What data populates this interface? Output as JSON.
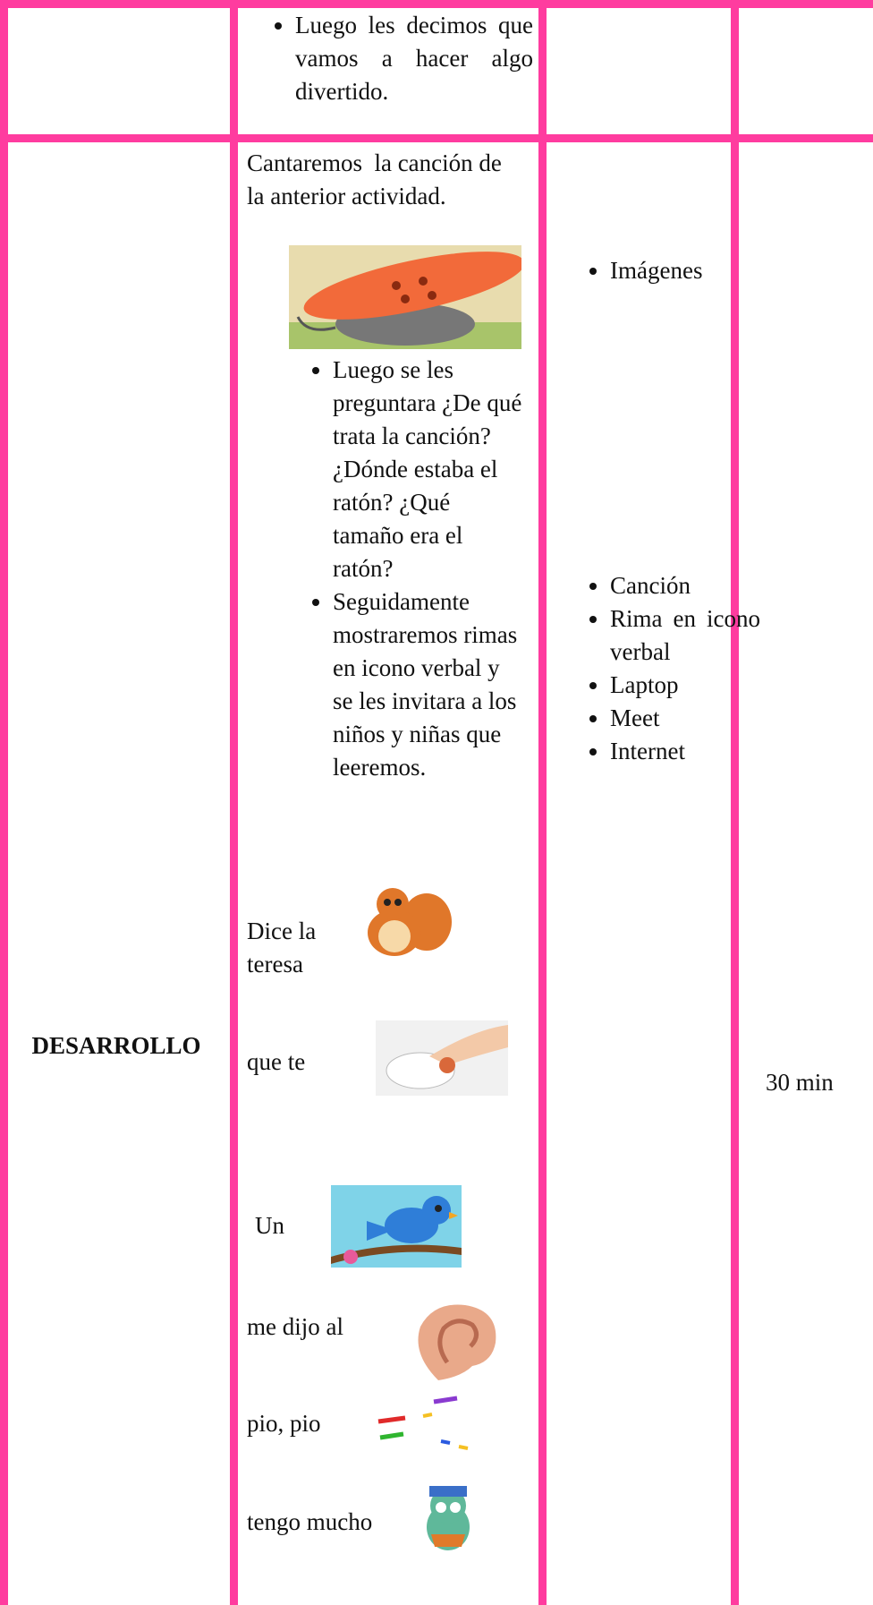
{
  "table": {
    "rows": [
      {
        "activity": {
          "bullets": [
            "Luego les decimos que vamos a hacer algo divertido."
          ]
        }
      },
      {
        "stage": "DESARROLLO",
        "activity": {
          "intro": "Cantaremos  la canción de la anterior actividad.",
          "bullets": [
            "Luego se les preguntara ¿De qué  trata la canción? ¿Dónde estaba el ratón? ¿Qué tamaño era el ratón?",
            "Seguidamente mostraremos rimas en icono verbal y se les invitara a los niños y niñas que leeremos."
          ],
          "rhyme_lines": [
            "Dice la teresa",
            "que te",
            "Un",
            "me dijo al",
            "pio, pio",
            "tengo mucho"
          ]
        },
        "resources": [
          [
            "Imágenes"
          ],
          [
            "Canción",
            "Rima en icono verbal",
            "Laptop",
            "Meet",
            "Internet"
          ]
        ],
        "time": "30 min"
      }
    ]
  }
}
